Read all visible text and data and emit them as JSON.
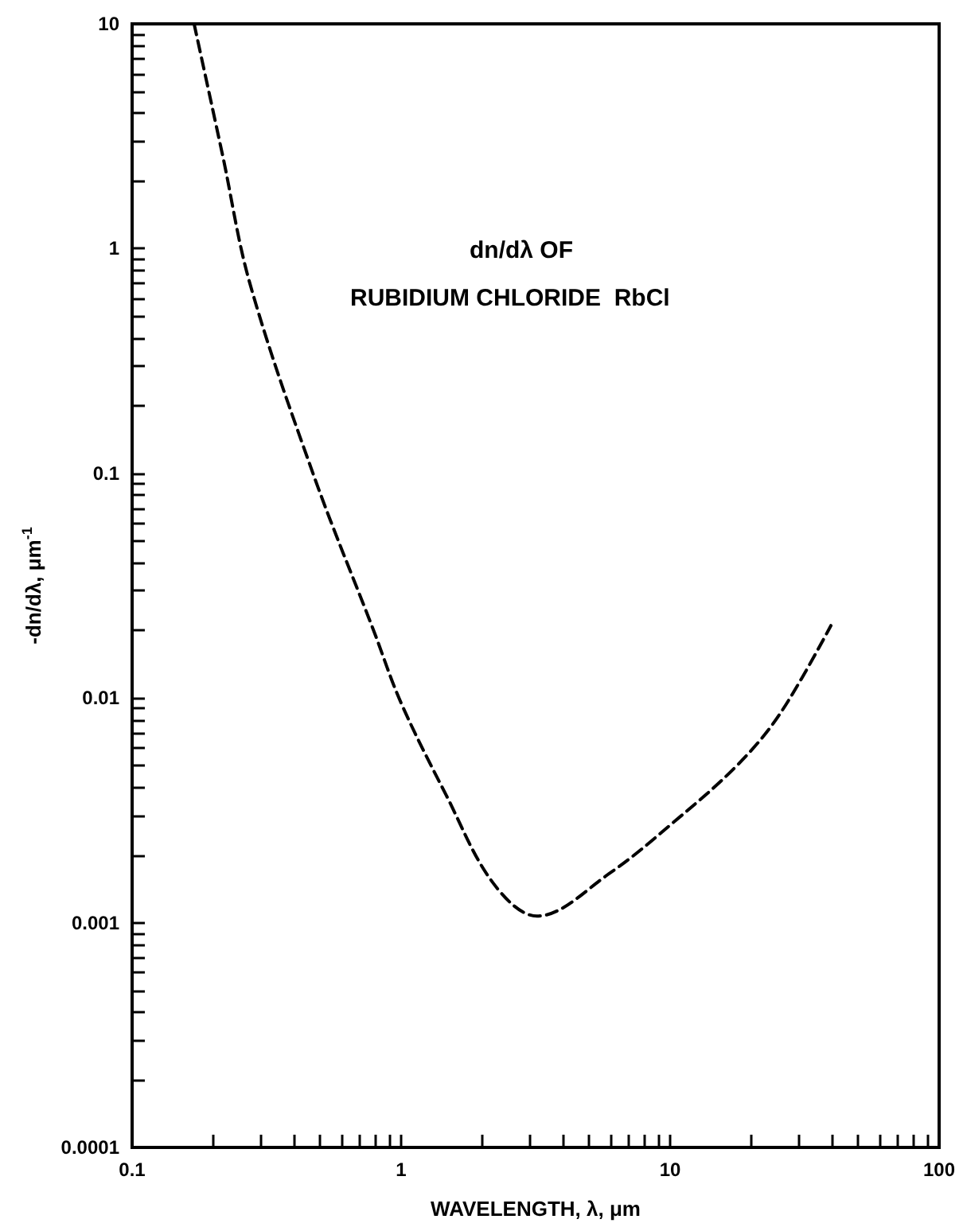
{
  "chart_data": {
    "type": "line",
    "xlabel": "WAVELENGTH, λ, μm",
    "ylabel": "-dn/dλ, μm$^{-1}$",
    "annotations": [
      "dn/dλ OF",
      "RUBIDIUM CHLORIDE  RbCl"
    ],
    "log": "xy",
    "xlim": [
      0.1,
      100
    ],
    "ylim": [
      0.0001,
      10
    ],
    "xticks": [
      0.1,
      {
        "value": 0.2,
        "label": null
      },
      {
        "value": 0.3,
        "label": null
      },
      {
        "value": 0.4,
        "label": null
      },
      {
        "value": 0.5,
        "label": null
      },
      {
        "value": 0.6,
        "label": null
      },
      {
        "value": 0.7,
        "label": null
      },
      {
        "value": 0.8,
        "label": null
      },
      {
        "value": 0.9,
        "label": null
      },
      1,
      {
        "value": 2,
        "label": null
      },
      {
        "value": 3,
        "label": null
      },
      {
        "value": 4,
        "label": null
      },
      {
        "value": 5,
        "label": null
      },
      {
        "value": 6,
        "label": null
      },
      {
        "value": 7,
        "label": null
      },
      {
        "value": 8,
        "label": null
      },
      {
        "value": 9,
        "label": null
      },
      10,
      {
        "value": 20,
        "label": null
      },
      {
        "value": 30,
        "label": null
      },
      {
        "value": 40,
        "label": null
      },
      {
        "value": 50,
        "label": null
      },
      {
        "value": 60,
        "label": null
      },
      {
        "value": 70,
        "label": null
      },
      {
        "value": 80,
        "label": null
      },
      {
        "value": 90,
        "label": null
      },
      100
    ],
    "yticks": [
      0.0001,
      {
        "value": 0.0002,
        "label": null
      },
      {
        "value": 0.0003,
        "label": null
      },
      {
        "value": 0.0004,
        "label": null
      },
      {
        "value": 0.0005,
        "label": null
      },
      {
        "value": 0.0006,
        "label": null
      },
      {
        "value": 0.0007,
        "label": null
      },
      {
        "value": 0.0008,
        "label": null
      },
      {
        "value": 0.0009,
        "label": null
      },
      0.001,
      {
        "value": 0.002,
        "label": null
      },
      {
        "value": 0.003,
        "label": null
      },
      {
        "value": 0.004,
        "label": null
      },
      {
        "value": 0.005,
        "label": null
      },
      {
        "value": 0.006,
        "label": null
      },
      {
        "value": 0.007,
        "label": null
      },
      {
        "value": 0.008,
        "label": null
      },
      {
        "value": 0.009,
        "label": null
      },
      0.01,
      {
        "value": 0.02,
        "label": null
      },
      {
        "value": 0.03,
        "label": null
      },
      {
        "value": 0.04,
        "label": null
      },
      {
        "value": 0.05,
        "label": null
      },
      {
        "value": 0.06,
        "label": null
      },
      {
        "value": 0.07,
        "label": null
      },
      {
        "value": 0.08,
        "label": null
      },
      {
        "value": 0.09,
        "label": null
      },
      0.1,
      {
        "value": 0.2,
        "label": null
      },
      {
        "value": 0.3,
        "label": null
      },
      {
        "value": 0.4,
        "label": null
      },
      {
        "value": 0.5,
        "label": null
      },
      {
        "value": 0.6,
        "label": null
      },
      {
        "value": 0.7,
        "label": null
      },
      {
        "value": 0.8,
        "label": null
      },
      {
        "value": 0.9,
        "label": null
      },
      1,
      {
        "value": 2,
        "label": null
      },
      {
        "value": 3,
        "label": null
      },
      {
        "value": 4,
        "label": null
      },
      {
        "value": 5,
        "label": null
      },
      {
        "value": 6,
        "label": null
      },
      {
        "value": 7,
        "label": null
      },
      {
        "value": 8,
        "label": null
      },
      {
        "value": 9,
        "label": null
      },
      10
    ],
    "marker": "none",
    "line_style": "dashed",
    "series": [
      {
        "color": "#000000",
        "x": [
          0.17,
          0.217,
          0.274,
          0.473,
          0.79,
          1,
          1.47,
          2.2,
          3.2,
          5.96,
          10.3,
          17.7,
          25.6,
          39.6
        ],
        "values": [
          10,
          2.6,
          0.7,
          0.098,
          0.02,
          0.0095,
          0.0037,
          0.0015,
          0.00107,
          0.00166,
          0.0028,
          0.005,
          0.0085,
          0.021
        ]
      }
    ]
  }
}
